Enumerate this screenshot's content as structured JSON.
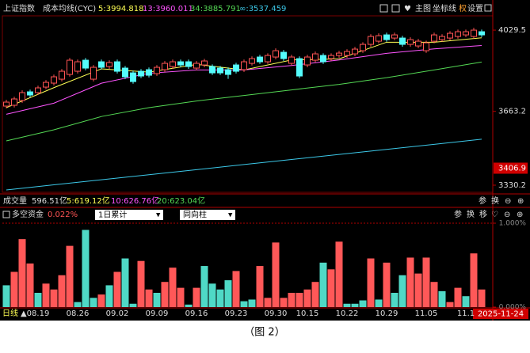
{
  "header": {
    "title": "上证指数",
    "indicator": "成本均线(CYC)",
    "buttons": [
      "主图",
      "坐标线",
      "权",
      "设置"
    ]
  },
  "volume_row": {
    "title": "成交量",
    "total": "596.51亿",
    "ma": [
      "5:619.12亿",
      "10:626.76亿",
      "20:623.04亿"
    ],
    "tools": [
      "参",
      "换"
    ]
  },
  "indicator_row": {
    "title": "多空资金",
    "value": "0.022%",
    "dropdowns": [
      "1日累计",
      "同向柱"
    ],
    "tools": [
      "参",
      "换",
      "移"
    ]
  },
  "footer": {
    "period": "日线",
    "cursor_date": "2025-11-24",
    "caption": "（图 2）"
  },
  "chart_data": [
    {
      "type": "candlestick",
      "categories": [
        null,
        null,
        null,
        null,
        "08.19",
        null,
        null,
        null,
        null,
        "08.26",
        null,
        null,
        null,
        null,
        "09.02",
        null,
        null,
        null,
        null,
        "09.09",
        null,
        null,
        null,
        null,
        "09.16",
        null,
        null,
        null,
        null,
        "09.23",
        null,
        null,
        null,
        null,
        "09.30",
        null,
        null,
        null,
        "10.15",
        null,
        null,
        null,
        null,
        "10.22",
        null,
        null,
        null,
        null,
        "10.29",
        null,
        null,
        null,
        null,
        "11.05",
        null,
        null,
        null,
        null,
        "11.1",
        null,
        null
      ],
      "open": [
        3687.0,
        3690.6,
        3712.0,
        3751.2,
        3747.6,
        3772.6,
        3790.5,
        3808.3,
        3829.7,
        3844.0,
        3893.9,
        3808.3,
        3886.8,
        3865.4,
        3886.8,
        3858.3,
        3836.8,
        3844.0,
        3851.1,
        3833.3,
        3851.1,
        3865.4,
        3886.8,
        3886.8,
        3858.3,
        3872.5,
        3865.4,
        3858.3,
        3851.1,
        3872.5,
        3851.1,
        3879.7,
        3908.2,
        3886.8,
        3908.2,
        3929.6,
        3879.7,
        3901.1,
        3872.5,
        3893.9,
        3915.3,
        3901.1,
        3915.3,
        3915.3,
        3922.5,
        3936.7,
        3965.3,
        3979.6,
        4008.1,
        3993.8,
        3993.8,
        3965.3,
        3958.2,
        3936.7,
        3979.6,
        3986.7,
        3993.8,
        4001.0,
        4008.1,
        4001.0,
        4022.4
      ],
      "high": [
        3715,
        3729,
        3758,
        3761,
        3779,
        3804,
        3829,
        3854,
        3904,
        3897,
        3904,
        3872,
        3897,
        3893,
        3897,
        3868,
        3847,
        3854,
        3861,
        3872,
        3890,
        3897,
        3897,
        3897,
        3890,
        3900,
        3875,
        3868,
        3861,
        3882,
        3897,
        3911,
        3918,
        3925,
        3947,
        3940,
        3918,
        3911,
        3918,
        3933,
        3925,
        3925,
        3936,
        3943,
        3954,
        3975,
        4011,
        4015,
        4018,
        4018,
        4004,
        3997,
        3990,
        3982,
        4018,
        4011,
        4025,
        4032,
        4032,
        4040,
        4032
      ],
      "low": [
        3677,
        3681,
        3702,
        3727,
        3738,
        3763,
        3780,
        3798,
        3820,
        3834,
        3848,
        3798,
        3852,
        3855,
        3834,
        3809,
        3788,
        3813,
        3816,
        3823,
        3841,
        3855,
        3862,
        3855,
        3848,
        3862,
        3827,
        3827,
        3810,
        3834,
        3841,
        3870,
        3877,
        3877,
        3898,
        3891,
        3870,
        3813,
        3862,
        3884,
        3877,
        3891,
        3905,
        3905,
        3912,
        3927,
        3955,
        3970,
        3977,
        3984,
        3955,
        3955,
        3948,
        3927,
        3970,
        3977,
        3984,
        3991,
        3998,
        3991,
        3998
      ],
      "close": [
        3704.8,
        3719.1,
        3747.6,
        3736.9,
        3769.1,
        3794.0,
        3819.0,
        3844.0,
        3893.9,
        3886.8,
        3858.3,
        3861.8,
        3861.8,
        3883.2,
        3844.0,
        3819.0,
        3797.6,
        3822.6,
        3826.1,
        3861.8,
        3879.7,
        3886.8,
        3872.5,
        3865.4,
        3879.7,
        3890.4,
        3836.8,
        3836.8,
        3829.7,
        3844.0,
        3886.8,
        3901.1,
        3886.8,
        3915.3,
        3936.7,
        3901.1,
        3908.2,
        3822.6,
        3908.2,
        3922.5,
        3886.8,
        3915.3,
        3926.0,
        3933.2,
        3943.9,
        3965.3,
        4001.0,
        4004.5,
        3986.7,
        4008.1,
        3965.3,
        3986.7,
        3979.6,
        3972.4,
        4008.1,
        4001.0,
        4015.2,
        4022.4,
        4022.4,
        4029.5,
        4008.1
      ],
      "up_color": "#ff5454",
      "down_color": "#54fcfc",
      "series": [
        {
          "label": "5:3994.818",
          "color": "#ffff54",
          "x": [
            0,
            6,
            12,
            18,
            24,
            30,
            36,
            42,
            48,
            54,
            60
          ],
          "values": [
            3680,
            3770,
            3855,
            3840,
            3875,
            3850,
            3895,
            3900,
            3975,
            3975,
            3994.818
          ]
        },
        {
          "label": "13:3960.011",
          "color": "#ff54ff",
          "x": [
            0,
            6,
            12,
            18,
            24,
            30,
            36,
            42,
            48,
            54,
            60
          ],
          "values": [
            3650,
            3700,
            3790,
            3835,
            3850,
            3850,
            3870,
            3895,
            3925,
            3945,
            3960.011
          ]
        },
        {
          "label": "34:3885.791",
          "color": "#54d854",
          "x": [
            0,
            6,
            12,
            18,
            24,
            30,
            36,
            42,
            48,
            54,
            60
          ],
          "values": [
            3530,
            3580,
            3640,
            3680,
            3710,
            3735,
            3760,
            3785,
            3815,
            3850,
            3885.791
          ]
        },
        {
          "label": "∞:3537.459",
          "color": "#3cc8e8",
          "x": [
            0,
            6,
            12,
            18,
            24,
            30,
            36,
            42,
            48,
            54,
            60
          ],
          "values": [
            3308.8,
            3331.7,
            3354.5,
            3377.4,
            3400.3,
            3423.2,
            3446.0,
            3468.9,
            3491.8,
            3514.6,
            3537.459
          ]
        }
      ],
      "ylim": [
        3298,
        4094
      ],
      "yticks": [
        4029.5,
        3663.2,
        3330.2
      ],
      "marker": 3406.9
    },
    {
      "type": "bar",
      "values": [
        0.26,
        0.42,
        0.81,
        0.52,
        0.17,
        0.28,
        0.21,
        0.38,
        0.73,
        0.06,
        0.92,
        0.11,
        0.15,
        0.26,
        0.42,
        0.58,
        0.04,
        0.55,
        0.21,
        0.17,
        0.3,
        0.47,
        0.23,
        0.03,
        0.23,
        0.49,
        0.28,
        0.21,
        0.32,
        0.43,
        0.07,
        0.09,
        0.49,
        0.11,
        0.77,
        0.11,
        0.17,
        0.17,
        0.21,
        0.3,
        0.53,
        0.45,
        0.78,
        0.04,
        0.04,
        0.08,
        0.58,
        0.09,
        0.53,
        0.17,
        0.38,
        0.59,
        0.4,
        0.59,
        0.3,
        0.19,
        0.06,
        0.23,
        0.13,
        0.64,
        0.21
      ],
      "colors": [
        "#4fd9c6",
        "#ff5858",
        "#ff5858",
        "#ff5858",
        "#4fd9c6",
        "#ff5858",
        "#ff5858",
        "#ff5858",
        "#ff5858",
        "#4fd9c6",
        "#4fd9c6",
        "#4fd9c6",
        "#ff5858",
        "#4fd9c6",
        "#ff5858",
        "#4fd9c6",
        "#4fd9c6",
        "#ff5858",
        "#ff5858",
        "#4fd9c6",
        "#ff5858",
        "#ff5858",
        "#ff5858",
        "#4fd9c6",
        "#ff5858",
        "#4fd9c6",
        "#4fd9c6",
        "#4fd9c6",
        "#4fd9c6",
        "#ff5858",
        "#4fd9c6",
        "#4fd9c6",
        "#ff5858",
        "#ff5858",
        "#ff5858",
        "#ff5858",
        "#ff5858",
        "#ff5858",
        "#ff5858",
        "#ff5858",
        "#4fd9c6",
        "#ff5858",
        "#ff5858",
        "#4fd9c6",
        "#4fd9c6",
        "#4fd9c6",
        "#ff5858",
        "#4fd9c6",
        "#ff5858",
        "#4fd9c6",
        "#4fd9c6",
        "#ff5858",
        "#ff5858",
        "#ff5858",
        "#ff5858",
        "#4fd9c6",
        "#ff5858",
        "#ff5858",
        "#4fd9c6",
        "#ff5858",
        "#ff5858"
      ],
      "ylim": [
        0,
        1
      ],
      "yticks": [
        {
          "value": 1,
          "label": "1.000%"
        },
        {
          "value": 0,
          "label": "0.000%"
        }
      ]
    }
  ]
}
